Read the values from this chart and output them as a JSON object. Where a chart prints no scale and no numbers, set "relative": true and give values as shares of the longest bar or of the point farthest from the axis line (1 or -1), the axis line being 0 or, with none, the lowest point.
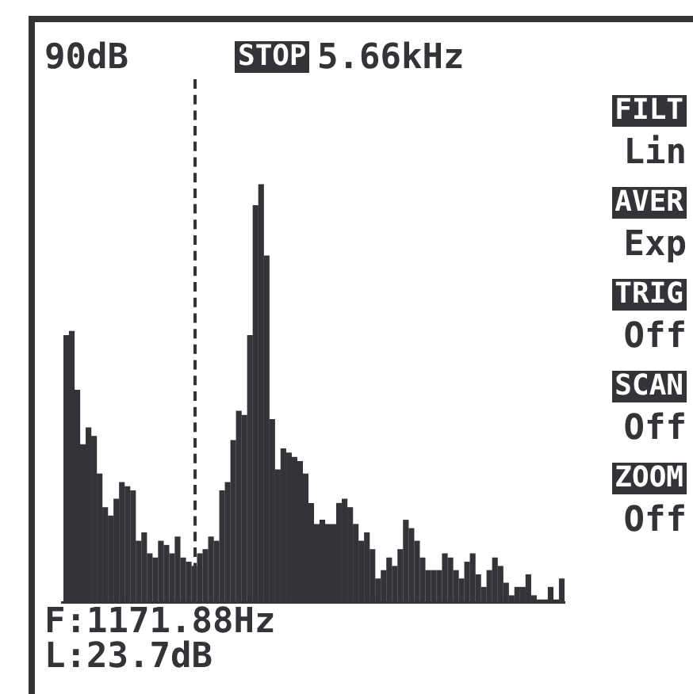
{
  "chart_data": {
    "type": "bar",
    "relative": true,
    "color": "#333338",
    "grid": false,
    "legend": false,
    "categories": [
      null,
      null,
      null,
      null,
      null,
      null,
      null,
      null,
      null,
      null,
      null,
      null,
      null,
      null,
      null,
      null,
      null,
      null,
      null,
      null,
      null,
      null,
      null,
      null,
      null,
      null,
      null,
      null,
      null,
      null,
      null,
      null,
      null,
      null,
      null,
      null,
      null,
      null,
      null,
      null,
      null,
      null,
      null,
      null,
      null,
      null,
      null,
      null,
      null,
      null,
      null,
      null,
      null,
      null,
      null,
      null,
      null,
      null,
      null,
      null,
      null,
      null,
      null,
      null,
      null,
      null,
      null,
      null,
      null,
      null,
      null,
      null,
      null,
      null,
      null,
      null,
      null,
      null,
      null,
      null,
      null,
      null,
      null,
      null,
      null,
      null,
      null,
      null,
      null,
      null
    ],
    "values": [
      0.64,
      0.65,
      0.51,
      0.38,
      0.42,
      0.4,
      0.31,
      0.23,
      0.21,
      0.25,
      0.29,
      0.28,
      0.27,
      0.15,
      0.17,
      0.12,
      0.11,
      0.15,
      0.14,
      0.12,
      0.16,
      0.11,
      0.1,
      0.09,
      0.12,
      0.13,
      0.16,
      0.15,
      0.27,
      0.29,
      0.39,
      0.46,
      0.45,
      0.64,
      0.95,
      1,
      0.83,
      0.44,
      0.32,
      0.37,
      0.36,
      0.35,
      0.34,
      0.31,
      0.24,
      0.19,
      0.2,
      0.19,
      0.19,
      0.24,
      0.25,
      0.23,
      0.19,
      0.15,
      0.17,
      0.13,
      0.06,
      0.08,
      0.11,
      0.09,
      0.13,
      0.2,
      0.18,
      0.15,
      0.11,
      0.08,
      0.08,
      0.08,
      0.12,
      0.11,
      0.08,
      0.06,
      0.1,
      0.12,
      0.07,
      0.04,
      0.08,
      0.11,
      0.09,
      0.05,
      0.02,
      0.04,
      0.04,
      0.07,
      0.02,
      0.01,
      0.01,
      0.04,
      0.01,
      0.06
    ],
    "annotations": [
      "90dB",
      "STOP",
      "5.66kHz",
      "FILT",
      "Lin",
      "AVER",
      "Exp",
      "TRIG",
      "Off",
      "SCAN",
      "Off",
      "ZOOM",
      "Off",
      "F:1171.88Hz",
      "L:23.7dB"
    ]
  }
}
